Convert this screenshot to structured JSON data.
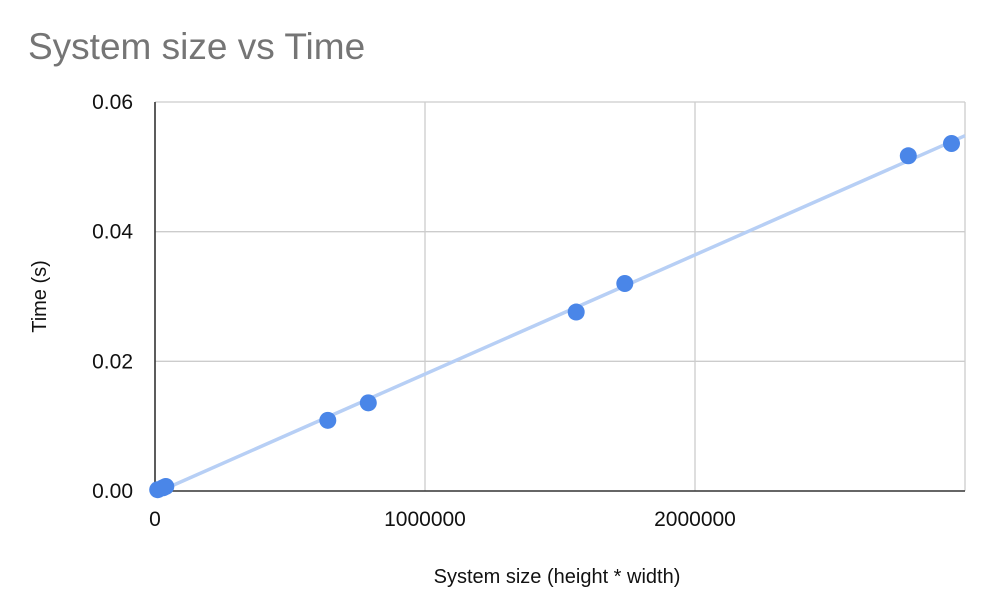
{
  "chart_data": {
    "type": "scatter",
    "title": "System size vs Time",
    "xlabel": "System size (height * width)",
    "ylabel": "Time (s)",
    "xlim": [
      0,
      3000000
    ],
    "ylim": [
      0,
      0.06
    ],
    "x_ticks": [
      0,
      1000000,
      2000000
    ],
    "x_tick_labels": [
      "0",
      "1000000",
      "2000000"
    ],
    "y_ticks": [
      0,
      0.02,
      0.04,
      0.06
    ],
    "y_tick_labels": [
      "0.00",
      "0.02",
      "0.04",
      "0.06"
    ],
    "grid": true,
    "trendline": true,
    "colors": {
      "points": "#4a86e8",
      "trendline": "#b7cff5",
      "grid": "#cccccc",
      "axis": "#333333"
    },
    "series": [
      {
        "x": [
          10000,
          30000,
          40000,
          640000,
          790000,
          1560000,
          1740000,
          2790000,
          2950000
        ],
        "y": [
          0.0002,
          0.0005,
          0.0007,
          0.0109,
          0.0136,
          0.0276,
          0.032,
          0.0517,
          0.0536
        ]
      }
    ]
  }
}
